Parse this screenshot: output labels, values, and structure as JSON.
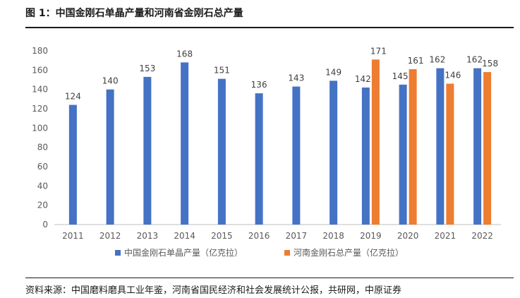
{
  "figure": {
    "title": "图 1：中国金刚石单晶产量和河南省金刚石总产量",
    "source": "资料来源：中国磨料磨具工业年鉴，河南省国民经济和社会发展统计公报，共研网，中原证券"
  },
  "colors": {
    "series1": "#4472c4",
    "series2": "#ed7d31",
    "axis": "#bfbfbf",
    "text": "#595959"
  },
  "chart_data": {
    "type": "bar",
    "categories": [
      "2011",
      "2012",
      "2013",
      "2014",
      "2015",
      "2016",
      "2017",
      "2018",
      "2019",
      "2020",
      "2021",
      "2022"
    ],
    "series": [
      {
        "name": "中国金刚石单晶产量（亿克拉）",
        "values": [
          124,
          140,
          153,
          168,
          151,
          136,
          143,
          149,
          142,
          145,
          162,
          162
        ]
      },
      {
        "name": "河南金刚石总产量（亿克拉）",
        "values": [
          null,
          null,
          null,
          null,
          null,
          null,
          null,
          null,
          171,
          161,
          146,
          158
        ]
      }
    ],
    "ylim": [
      0,
      180
    ],
    "yticks": [
      0,
      20,
      40,
      60,
      80,
      100,
      120,
      140,
      160,
      180
    ],
    "grid": false,
    "legend": "bottom"
  }
}
